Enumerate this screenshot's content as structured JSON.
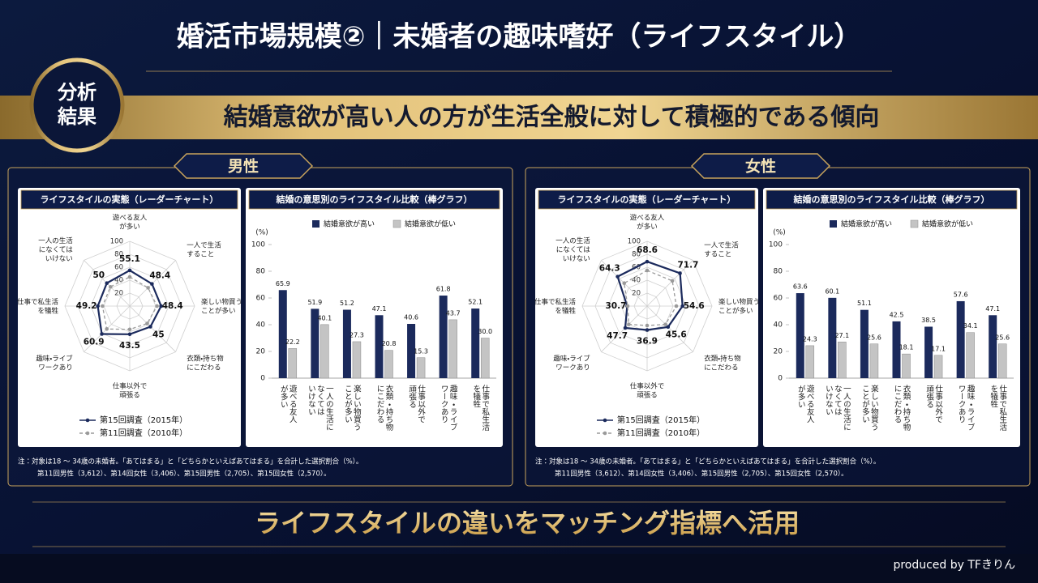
{
  "header": {
    "title": "婚活市場規模②｜未婚者の趣味嗜好（ライフスタイル）",
    "badge": "分析\n結果",
    "banner": "結婚意欲が高い人の方が生活全般に対して積極的である傾向"
  },
  "sections": [
    {
      "label": "男性",
      "note": "注：対象は18 ～ 34歳の未婚者。「あてはまる」と「どちらかといえばあてはまる」を合計した選択割合（%）。",
      "note_sub": "第11回男性（3,612）、第14回女性（3,406）、第15回男性（2,705）、第15回女性（2,570）。"
    },
    {
      "label": "女性",
      "note": "注：対象は18 ～ 34歳の未婚者。「あてはまる」と「どちらかといえばあてはまる」を合計した選択割合（%）。",
      "note_sub": "第11回男性（3,612）、第14回女性（3,406）、第15回男性（2,705）、第15回女性（2,570）。"
    }
  ],
  "chart_data": [
    {
      "type": "radar",
      "title": "ライフスタイルの実態（レーダーチャート）",
      "categories": [
        "遊べる友人\nが多い",
        "一人で生活\nすること",
        "楽しい物買う\nことが多い",
        "衣類・持ち物\nにこだわる",
        "仕事以外で\n頑張る",
        "趣味・ライブ\nワークあり",
        "仕事で私生活\nを犠牲",
        "一人の生活\nになくては\nいけない"
      ],
      "rlim": [
        0,
        100
      ],
      "rticks": [
        20,
        40,
        60,
        80,
        100
      ],
      "series": [
        {
          "name": "第15回調査（2015年）",
          "color": "#1b2a5c",
          "line_style": "solid",
          "data_labels": true,
          "values": [
            55.1,
            48.4,
            48.4,
            45,
            43.5,
            60.9,
            49.2,
            50
          ]
        },
        {
          "name": "第11回調査（2010年）",
          "color": "#9a9a9a",
          "line_style": "dashed",
          "values": [
            45,
            40,
            42,
            38,
            36,
            50,
            42,
            42
          ]
        }
      ]
    },
    {
      "type": "bar",
      "title": "結婚の意思別のライフスタイル比較（棒グラフ）",
      "ylabel": "(%)",
      "categories": [
        "遊べる友人\nが多い",
        "一人の生活に\nなくては\nいけない",
        "楽しい物買う\nことが多い",
        "衣類・持ち物\nにこだわる",
        "仕事以外で\n頑張る",
        "趣味・ライブ\nワークあり",
        "仕事で私生活\nを犠牲"
      ],
      "ylim": [
        0,
        100
      ],
      "yticks": [
        0,
        20,
        40,
        60,
        80,
        100
      ],
      "series": [
        {
          "name": "結婚意欲が高い",
          "color": "#1b2a5c",
          "data_labels": true,
          "values": [
            65.9,
            51.9,
            51.2,
            47.1,
            40.6,
            61.8,
            52.1
          ]
        },
        {
          "name": "結婚意欲が低い",
          "color": "#c4c4c4",
          "data_labels": true,
          "values": [
            22.2,
            40.1,
            27.3,
            20.8,
            15.3,
            43.7,
            30
          ],
          "value_labels": [
            "22.2",
            "40.1",
            "27.3",
            "20.8",
            "15.3",
            "43.7",
            "30.0"
          ]
        }
      ]
    },
    {
      "type": "radar",
      "title": "ライフスタイルの実態（レーダーチャート）",
      "categories": [
        "遊べる友人\nが多い",
        "一人で生活\nすること",
        "楽しい物買う\nことが多い",
        "衣類・持ち物\nにこだわる",
        "仕事以外で\n頑張る",
        "趣味・ライブ\nワークあり",
        "仕事で私生活\nを犠牲",
        "一人の生活\nになくては\nいけない"
      ],
      "rlim": [
        0,
        100
      ],
      "rticks": [
        20,
        40,
        60,
        80,
        100
      ],
      "series": [
        {
          "name": "第15回調査（2015年）",
          "color": "#1b2a5c",
          "line_style": "solid",
          "data_labels": true,
          "values": [
            68.6,
            71.7,
            54.6,
            45.6,
            36.9,
            47.7,
            30.7,
            64.3
          ]
        },
        {
          "name": "第11回調査（2010年）",
          "color": "#9a9a9a",
          "line_style": "dashed",
          "values": [
            55,
            55,
            45,
            40,
            30,
            40,
            30,
            50
          ]
        }
      ]
    },
    {
      "type": "bar",
      "title": "結婚の意思別のライフスタイル比較（棒グラフ）",
      "ylabel": "(%)",
      "categories": [
        "遊べる友人\nが多い",
        "一人の生活に\nなくては\nいけない",
        "楽しい物買う\nことが多い",
        "衣類・持ち物\nにこだわる",
        "仕事以外で\n頑張る",
        "趣味・ライブ\nワークあり",
        "仕事で私生活\nを犠牲"
      ],
      "ylim": [
        0,
        100
      ],
      "yticks": [
        0,
        20,
        40,
        60,
        80,
        100
      ],
      "series": [
        {
          "name": "結婚意欲が高い",
          "color": "#1b2a5c",
          "data_labels": true,
          "values": [
            63.6,
            60.1,
            51.1,
            42.5,
            38.5,
            57.6,
            47.1
          ]
        },
        {
          "name": "結婚意欲が低い",
          "color": "#c4c4c4",
          "data_labels": true,
          "values": [
            24.3,
            27.1,
            25.6,
            18.1,
            17.1,
            34.1,
            25.6
          ]
        }
      ]
    }
  ],
  "footer": {
    "message": "ライフスタイルの違いをマッチング指標へ活用",
    "credit": "produced by TFきりん"
  }
}
